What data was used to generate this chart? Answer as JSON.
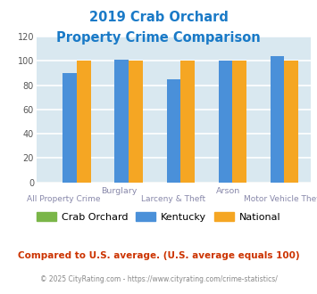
{
  "title_line1": "2019 Crab Orchard",
  "title_line2": "Property Crime Comparison",
  "title_color": "#1a7ac7",
  "groups": [
    "All Property Crime",
    "Burglary",
    "Larceny & Theft",
    "Arson",
    "Motor Vehicle Theft"
  ],
  "crab_orchard": [
    0,
    0,
    0,
    0,
    0
  ],
  "kentucky": [
    90,
    101,
    85,
    100,
    104
  ],
  "national": [
    100,
    100,
    100,
    100,
    100
  ],
  "bar_colors": {
    "crab_orchard": "#7ab648",
    "kentucky": "#4a90d9",
    "national": "#f5a623"
  },
  "ylim": [
    0,
    120
  ],
  "yticks": [
    0,
    20,
    40,
    60,
    80,
    100,
    120
  ],
  "background_color": "#d9e8f0",
  "grid_color": "#ffffff",
  "top_labels": [
    [
      1,
      "Burglary"
    ],
    [
      3,
      "Arson"
    ]
  ],
  "bottom_labels": [
    [
      0,
      "All Property Crime"
    ],
    [
      2,
      "Larceny & Theft"
    ],
    [
      4,
      "Motor Vehicle Theft"
    ]
  ],
  "footer_text": "Compared to U.S. average. (U.S. average equals 100)",
  "footer_color": "#cc3300",
  "copyright_text": "© 2025 CityRating.com - https://www.cityrating.com/crime-statistics/",
  "copyright_color": "#888888",
  "legend_labels": [
    "Crab Orchard",
    "Kentucky",
    "National"
  ],
  "bar_width": 0.27
}
